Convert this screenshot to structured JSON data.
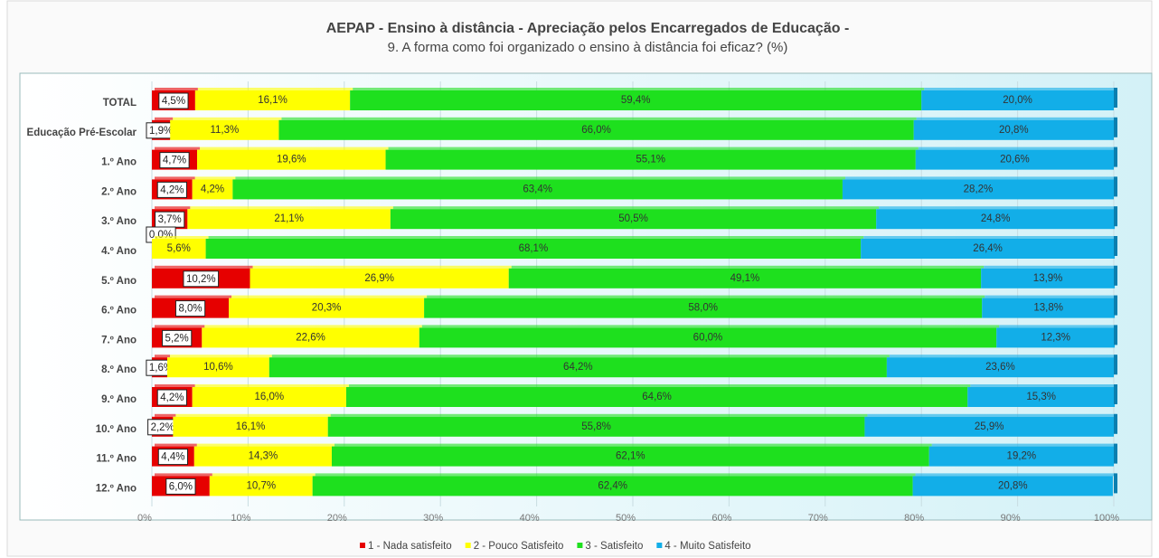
{
  "chart_data": {
    "type": "stacked_barh",
    "title": "AEPAP  - Ensino à distância - Apreciação pelos Encarregados de Educação -",
    "subtitle": "9. A forma como foi organizado o ensino à distância foi eficaz? (%)",
    "categories": [
      "TOTAL",
      "Educação Pré-Escolar",
      "1.º Ano",
      "2.º Ano",
      "3.º Ano",
      "4.º Ano",
      "5.º Ano",
      "6.º Ano",
      "7.º Ano",
      "8.º Ano",
      "9.º Ano",
      "10.º Ano",
      "11.º Ano",
      "12.º Ano"
    ],
    "series": [
      {
        "name": "1 - Nada satisfeito",
        "color": "#e60000",
        "values": [
          4.5,
          1.9,
          4.7,
          4.2,
          3.7,
          0.0,
          10.2,
          8.0,
          5.2,
          1.6,
          4.2,
          2.2,
          4.4,
          6.0
        ],
        "value_labels": [
          "4,5%",
          "1,9%",
          "4,7%",
          "4,2%",
          "3,7%",
          "0,0%",
          "10,2%",
          "8,0%",
          "5,2%",
          "1,6%",
          "4,2%",
          "2,2%",
          "4,4%",
          "6,0%"
        ]
      },
      {
        "name": "2 - Pouco Satisfeito",
        "color": "#ffff00",
        "values": [
          16.1,
          11.3,
          19.6,
          4.2,
          21.1,
          5.6,
          26.9,
          20.3,
          22.6,
          10.6,
          16.0,
          16.1,
          14.3,
          10.7
        ],
        "value_labels": [
          "16,1%",
          "11,3%",
          "19,6%",
          "4,2%",
          "21,1%",
          "5,6%",
          "26,9%",
          "20,3%",
          "22,6%",
          "10,6%",
          "16,0%",
          "16,1%",
          "14,3%",
          "10,7%"
        ]
      },
      {
        "name": "3 - Satisfeito",
        "color": "#1ee01e",
        "values": [
          59.4,
          66.0,
          55.1,
          63.4,
          50.5,
          68.1,
          49.1,
          58.0,
          60.0,
          64.2,
          64.6,
          55.8,
          62.1,
          62.4
        ],
        "value_labels": [
          "59,4%",
          "66,0%",
          "55,1%",
          "63,4%",
          "50,5%",
          "68,1%",
          "49,1%",
          "58,0%",
          "60,0%",
          "64,2%",
          "64,6%",
          "55,8%",
          "62,1%",
          "62,4%"
        ]
      },
      {
        "name": "4 - Muito Satisfeito",
        "color": "#12aee8",
        "values": [
          20.0,
          20.8,
          20.6,
          28.2,
          24.8,
          26.4,
          13.9,
          13.8,
          12.3,
          23.6,
          15.3,
          25.9,
          19.2,
          20.8
        ],
        "value_labels": [
          "20,0%",
          "20,8%",
          "20,6%",
          "28,2%",
          "24,8%",
          "26,4%",
          "13,9%",
          "13,8%",
          "12,3%",
          "23,6%",
          "15,3%",
          "25,9%",
          "19,2%",
          "20,8%"
        ]
      }
    ],
    "xlim": [
      0,
      100
    ],
    "xticks": [
      {
        "value": 0,
        "label": "0%"
      },
      {
        "value": 10,
        "label": "10%"
      },
      {
        "value": 20,
        "label": "20%"
      },
      {
        "value": 30,
        "label": "30%"
      },
      {
        "value": 40,
        "label": "40%"
      },
      {
        "value": 50,
        "label": "50%"
      },
      {
        "value": 60,
        "label": "60%"
      },
      {
        "value": 70,
        "label": "70%"
      },
      {
        "value": 80,
        "label": "80%"
      },
      {
        "value": 90,
        "label": "90%"
      },
      {
        "value": 100,
        "label": "100%"
      }
    ],
    "grid": true,
    "legend": "bottom"
  }
}
